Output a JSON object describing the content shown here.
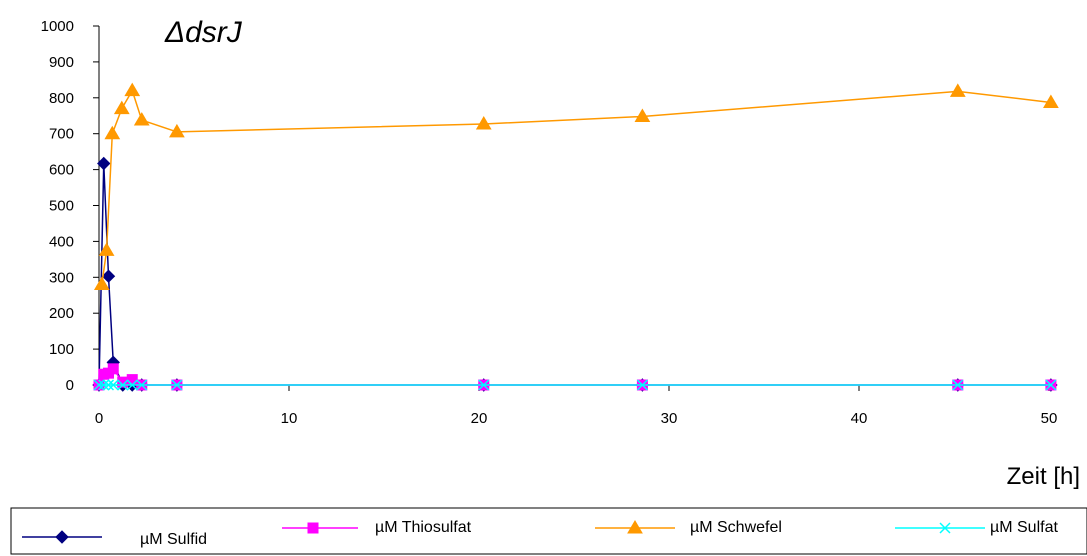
{
  "chart_data": {
    "type": "line",
    "title": "ΔdsrJ",
    "xlabel": "Zeit [h]",
    "ylabel": "",
    "xlim": [
      0,
      50
    ],
    "ylim": [
      0,
      1000
    ],
    "x_ticks": [
      0,
      10,
      20,
      30,
      40,
      50
    ],
    "y_ticks": [
      0,
      100,
      200,
      300,
      400,
      500,
      600,
      700,
      800,
      900,
      1000
    ],
    "grid": false,
    "legend_position": "bottom",
    "series": [
      {
        "name": "µM Sulfid",
        "color": "#000080",
        "marker": "diamond",
        "x": [
          0,
          0.25,
          0.5,
          0.75,
          1.25,
          1.75,
          2.25,
          4.1,
          20.25,
          28.6,
          45.2,
          50.1
        ],
        "y": [
          0,
          617,
          303,
          63,
          0,
          0,
          0,
          0,
          0,
          0,
          0,
          0
        ]
      },
      {
        "name": "µM Thiosulfat",
        "color": "#FF00FF",
        "marker": "square",
        "x": [
          0,
          0.25,
          0.5,
          0.75,
          1.25,
          1.75,
          2.25,
          4.1,
          20.25,
          28.6,
          45.2,
          50.1
        ],
        "y": [
          0,
          30,
          33,
          45,
          8,
          15,
          0,
          0,
          0,
          0,
          0,
          0
        ]
      },
      {
        "name": "µM Schwefel",
        "color": "#FF9900",
        "marker": "triangle",
        "x": [
          0.15,
          0.4,
          0.7,
          1.2,
          1.75,
          2.25,
          4.1,
          20.25,
          28.6,
          45.2,
          50.1
        ],
        "y": [
          280,
          375,
          700,
          770,
          820,
          738,
          705,
          727,
          748,
          818,
          787
        ]
      },
      {
        "name": "µM Sulfat",
        "color": "#00FFFF",
        "marker": "x",
        "x": [
          0,
          0.25,
          0.5,
          0.75,
          1.25,
          1.75,
          2.25,
          4.1,
          20.25,
          28.6,
          45.2,
          50.1
        ],
        "y": [
          0,
          0,
          0,
          0,
          0,
          0,
          0,
          0,
          0,
          0,
          0,
          0
        ]
      }
    ]
  }
}
